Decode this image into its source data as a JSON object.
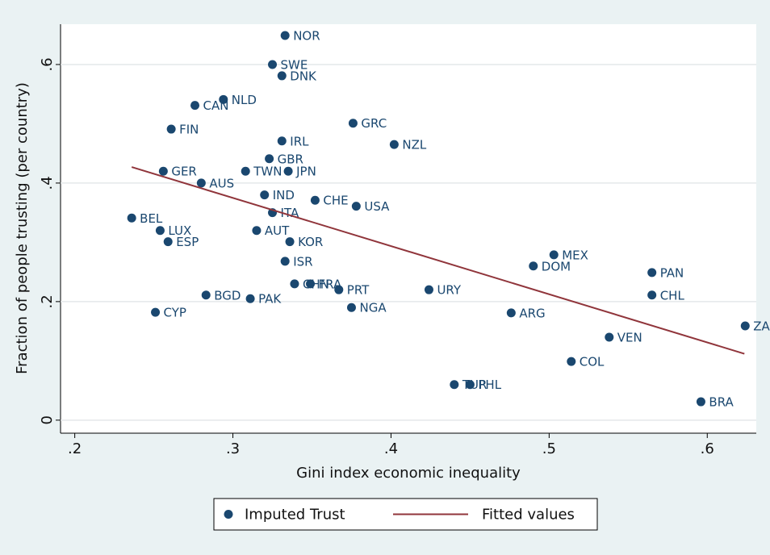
{
  "chart_data": {
    "type": "scatter",
    "x_label": "Gini index economic inequality",
    "y_label": "Fraction of people trusting (per country)",
    "xlim": [
      0.191,
      0.631
    ],
    "ylim": [
      -0.022,
      0.668
    ],
    "xticks": [
      {
        "value": 0.2,
        "label": ".2"
      },
      {
        "value": 0.3,
        "label": ".3"
      },
      {
        "value": 0.4,
        "label": ".4"
      },
      {
        "value": 0.5,
        "label": ".5"
      },
      {
        "value": 0.6,
        "label": ".6"
      }
    ],
    "yticks": [
      0,
      {
        "value": 0.2,
        "label": ".2"
      },
      {
        "value": 0.4,
        "label": ".4"
      },
      {
        "value": 0.6,
        "label": ".6"
      }
    ],
    "grid": true,
    "series": [
      {
        "name": "Imputed Trust",
        "type": "scatter",
        "color": "#1a476f",
        "labels": [
          "NOR",
          "SWE",
          "DNK",
          "NLD",
          "CAN",
          "FIN",
          "GRC",
          "IRL",
          "NZL",
          "GBR",
          "GER",
          "TWN",
          "JPN",
          "AUS",
          "IND",
          "CHE",
          "USA",
          "ITA",
          "BEL",
          "LUX",
          "AUT",
          "ESP",
          "KOR",
          "MEX",
          "ISR",
          "DOM",
          "PAN",
          "CHN",
          "FRA",
          "PRT",
          "URY",
          "BGD",
          "PAK",
          "CHL",
          "NGA",
          "ARG",
          "CYP",
          "ZA",
          "VEN",
          "COL",
          "TUR",
          "PHL",
          "BRA"
        ],
        "x": [
          0.333,
          0.325,
          0.331,
          0.294,
          0.276,
          0.261,
          0.376,
          0.331,
          0.402,
          0.323,
          0.256,
          0.308,
          0.335,
          0.28,
          0.32,
          0.352,
          0.378,
          0.325,
          0.236,
          0.254,
          0.315,
          0.259,
          0.336,
          0.503,
          0.333,
          0.49,
          0.565,
          0.339,
          0.349,
          0.367,
          0.424,
          0.283,
          0.311,
          0.565,
          0.375,
          0.476,
          0.251,
          0.624,
          0.538,
          0.514,
          0.44,
          0.45,
          0.596
        ],
        "values": [
          0.649,
          0.6,
          0.581,
          0.541,
          0.531,
          0.491,
          0.501,
          0.471,
          0.465,
          0.441,
          0.42,
          0.42,
          0.42,
          0.4,
          0.38,
          0.371,
          0.361,
          0.35,
          0.341,
          0.32,
          0.32,
          0.301,
          0.301,
          0.279,
          0.268,
          0.26,
          0.249,
          0.23,
          0.23,
          0.22,
          0.22,
          0.211,
          0.205,
          0.211,
          0.19,
          0.181,
          0.182,
          0.159,
          0.14,
          0.099,
          0.06,
          0.06,
          0.031
        ]
      },
      {
        "name": "Fitted values",
        "type": "line",
        "color": "#90353b",
        "x": [
          0.236,
          0.6235
        ],
        "values": [
          0.427,
          0.112
        ]
      }
    ]
  }
}
